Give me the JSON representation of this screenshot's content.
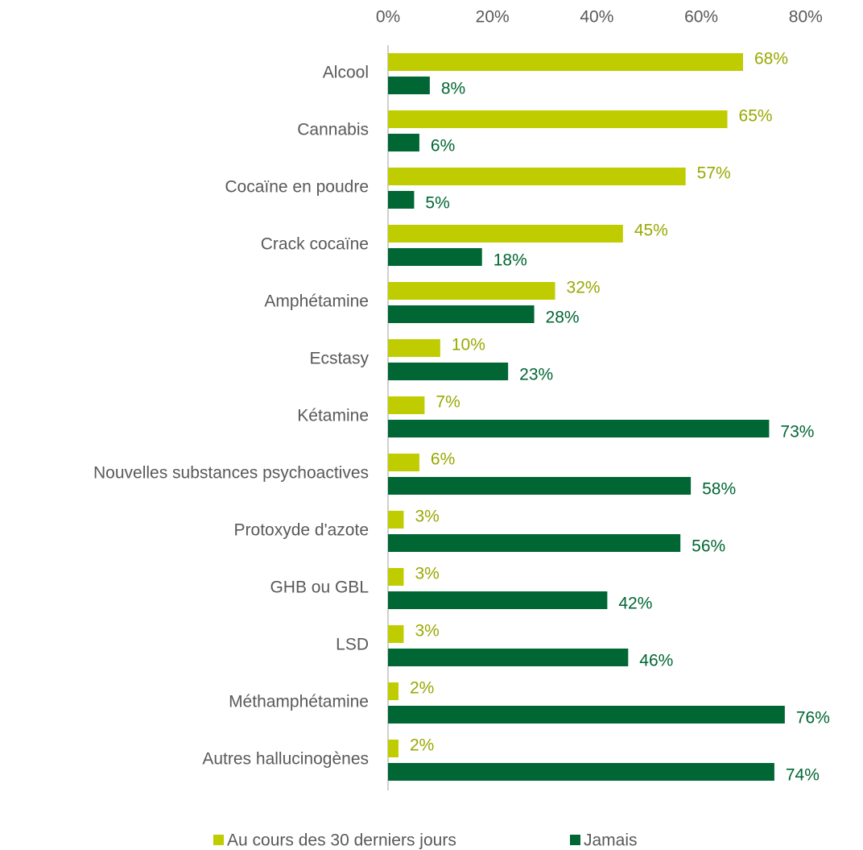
{
  "chart_data": {
    "type": "bar",
    "orientation": "horizontal",
    "categories": [
      "Alcool",
      "Cannabis",
      "Cocaïne en poudre",
      "Crack cocaïne",
      "Amphétamine",
      "Ecstasy",
      "Kétamine",
      "Nouvelles substances psychoactives",
      "Protoxyde d'azote",
      "GHB ou GBL",
      "LSD",
      "Méthamphétamine",
      "Autres hallucinogènes"
    ],
    "series": [
      {
        "name": "Au cours des 30 derniers jours",
        "color": "#bfcc00",
        "values": [
          68,
          65,
          57,
          45,
          32,
          10,
          7,
          6,
          3,
          3,
          3,
          2,
          2
        ],
        "value_labels": [
          "68%",
          "65%",
          "57%",
          "45%",
          "32%",
          "10%",
          "7%",
          "6%",
          "3%",
          "3%",
          "3%",
          "2%",
          "2%"
        ]
      },
      {
        "name": "Jamais",
        "color": "#006633",
        "values": [
          8,
          6,
          5,
          18,
          28,
          23,
          73,
          58,
          56,
          42,
          46,
          76,
          74
        ],
        "value_labels": [
          "8%",
          "6%",
          "5%",
          "18%",
          "28%",
          "23%",
          "73%",
          "58%",
          "56%",
          "42%",
          "46%",
          "76%",
          "74%"
        ]
      }
    ],
    "xlim": [
      0,
      80
    ],
    "xticks": [
      {
        "value": 0,
        "label": "0%"
      },
      {
        "value": 20,
        "label": "20%"
      },
      {
        "value": 40,
        "label": "40%"
      },
      {
        "value": 60,
        "label": "60%"
      },
      {
        "value": 80,
        "label": "80%"
      }
    ],
    "grid": false,
    "legend": "bottom"
  }
}
